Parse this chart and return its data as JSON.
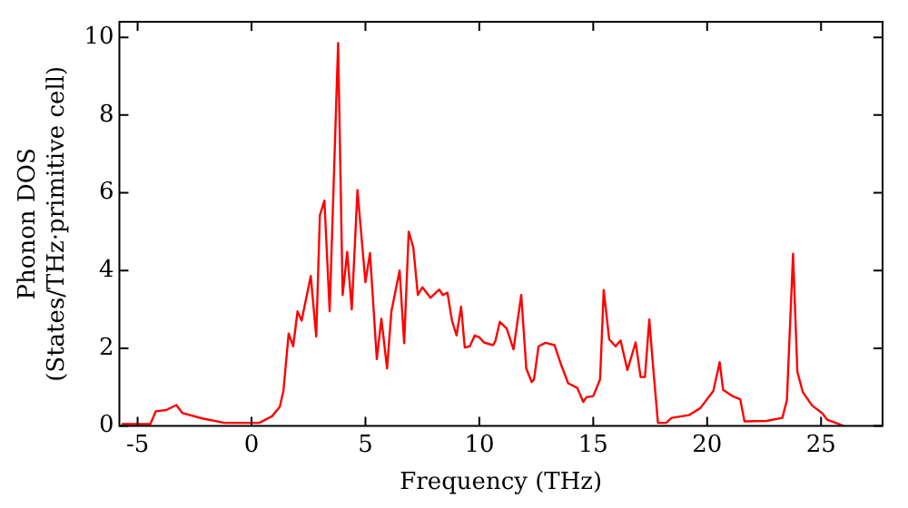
{
  "chart_data": {
    "type": "line",
    "xlabel": "Frequency (THz)",
    "ylabel": "Phonon DOS\n(States/THz·primitive cell)",
    "xlim": [
      -5.8,
      27.7
    ],
    "ylim": [
      0,
      10.4
    ],
    "xticks": [
      -5,
      0,
      5,
      10,
      15,
      20,
      25
    ],
    "yticks": [
      0,
      2,
      4,
      6,
      8,
      10
    ],
    "grid": false,
    "legend": false,
    "marker": "none",
    "line_style": "solid",
    "series": [
      {
        "color": "#ff0000",
        "x": [
          -5.7,
          -4.44,
          -4.2,
          -3.74,
          -3.3,
          -3.03,
          -2.2,
          -1.2,
          0.34,
          0.9,
          1.24,
          1.4,
          1.63,
          1.83,
          2.02,
          2.2,
          2.6,
          2.84,
          3.0,
          3.2,
          3.43,
          3.8,
          4.0,
          4.2,
          4.4,
          4.65,
          5.0,
          5.2,
          5.5,
          5.7,
          5.95,
          6.14,
          6.5,
          6.7,
          6.9,
          7.1,
          7.3,
          7.5,
          7.86,
          8.24,
          8.4,
          8.6,
          8.8,
          9.0,
          9.2,
          9.36,
          9.58,
          9.8,
          10.0,
          10.2,
          10.6,
          10.7,
          10.9,
          11.2,
          11.5,
          11.84,
          12.06,
          12.3,
          12.4,
          12.6,
          12.9,
          13.3,
          13.6,
          13.9,
          14.3,
          14.56,
          14.7,
          15.0,
          15.3,
          15.46,
          15.7,
          15.98,
          16.2,
          16.5,
          16.86,
          17.08,
          17.27,
          17.46,
          17.6,
          17.84,
          18.2,
          18.44,
          19.2,
          19.7,
          20.27,
          20.55,
          20.7,
          21.1,
          21.45,
          21.64,
          22.6,
          23.3,
          23.5,
          23.77,
          23.96,
          24.2,
          24.6,
          25.05,
          25.27,
          26.0
        ],
        "values": [
          0.05,
          0.05,
          0.38,
          0.41,
          0.54,
          0.33,
          0.2,
          0.08,
          0.08,
          0.25,
          0.49,
          0.9,
          2.38,
          2.05,
          2.95,
          2.71,
          3.86,
          2.3,
          5.42,
          5.8,
          2.95,
          9.85,
          3.37,
          4.48,
          3.0,
          6.07,
          3.7,
          4.45,
          1.72,
          2.76,
          1.48,
          2.95,
          4.0,
          2.13,
          5.0,
          4.6,
          3.37,
          3.57,
          3.3,
          3.51,
          3.37,
          3.43,
          2.71,
          2.33,
          3.07,
          2.02,
          2.05,
          2.33,
          2.28,
          2.15,
          2.08,
          2.18,
          2.68,
          2.51,
          1.97,
          3.37,
          1.48,
          1.13,
          1.2,
          2.05,
          2.14,
          2.08,
          1.56,
          1.1,
          0.98,
          0.62,
          0.74,
          0.77,
          1.2,
          3.5,
          2.23,
          2.05,
          2.2,
          1.44,
          2.15,
          1.26,
          1.26,
          2.74,
          1.72,
          0.08,
          0.08,
          0.21,
          0.28,
          0.46,
          0.9,
          1.64,
          0.93,
          0.77,
          0.69,
          0.12,
          0.13,
          0.21,
          0.66,
          4.43,
          1.39,
          0.87,
          0.53,
          0.33,
          0.16,
          0.0
        ]
      }
    ]
  }
}
